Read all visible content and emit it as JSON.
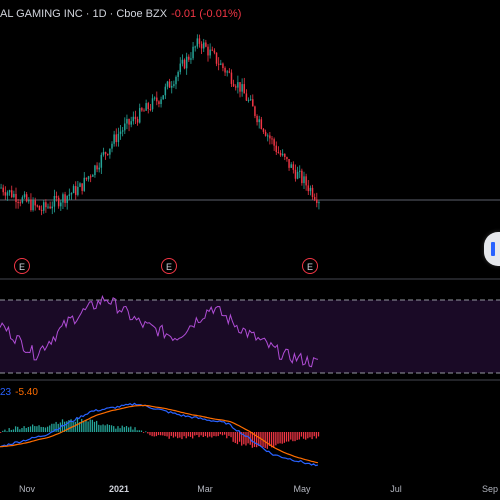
{
  "header": {
    "symbol_title": "AL GAMING INC · 1D · Cboe BZX",
    "change": "-0.01 (-0.01%)"
  },
  "macd_header": {
    "value1": "23",
    "value2": "-5.40"
  },
  "earnings_markers": [
    {
      "label": "E"
    },
    {
      "label": "E"
    },
    {
      "label": "E"
    }
  ],
  "x_axis": {
    "labels": [
      {
        "text": "Nov",
        "bold": false
      },
      {
        "text": "2021",
        "bold": true
      },
      {
        "text": "Mar",
        "bold": false
      },
      {
        "text": "May",
        "bold": false
      },
      {
        "text": "Jul",
        "bold": false
      },
      {
        "text": "Sep",
        "bold": false
      }
    ]
  },
  "colors": {
    "up": "#26a69a",
    "down": "#f23645",
    "rsi_line": "#b04dd6",
    "rsi_band": "#1a0a26",
    "macd_line": "#2962ff",
    "signal_line": "#ff6d00",
    "grid_line": "#5d606b"
  },
  "chart_data": {
    "type": "candlestick",
    "x": [
      "Nov",
      "2021",
      "Mar",
      "May",
      "Jul",
      "Sep"
    ],
    "price_trend": [
      0.3,
      0.2,
      0.3,
      0.55,
      0.7,
      0.95,
      0.75,
      0.45,
      0.25
    ],
    "rsi_trend": [
      0.55,
      0.2,
      0.6,
      0.85,
      0.55,
      0.4,
      0.75,
      0.45,
      0.2,
      0.1
    ],
    "macd_trend": [
      0.3,
      0.45,
      0.75,
      0.85,
      0.7,
      0.6,
      0.2,
      0.05
    ],
    "legend": []
  }
}
